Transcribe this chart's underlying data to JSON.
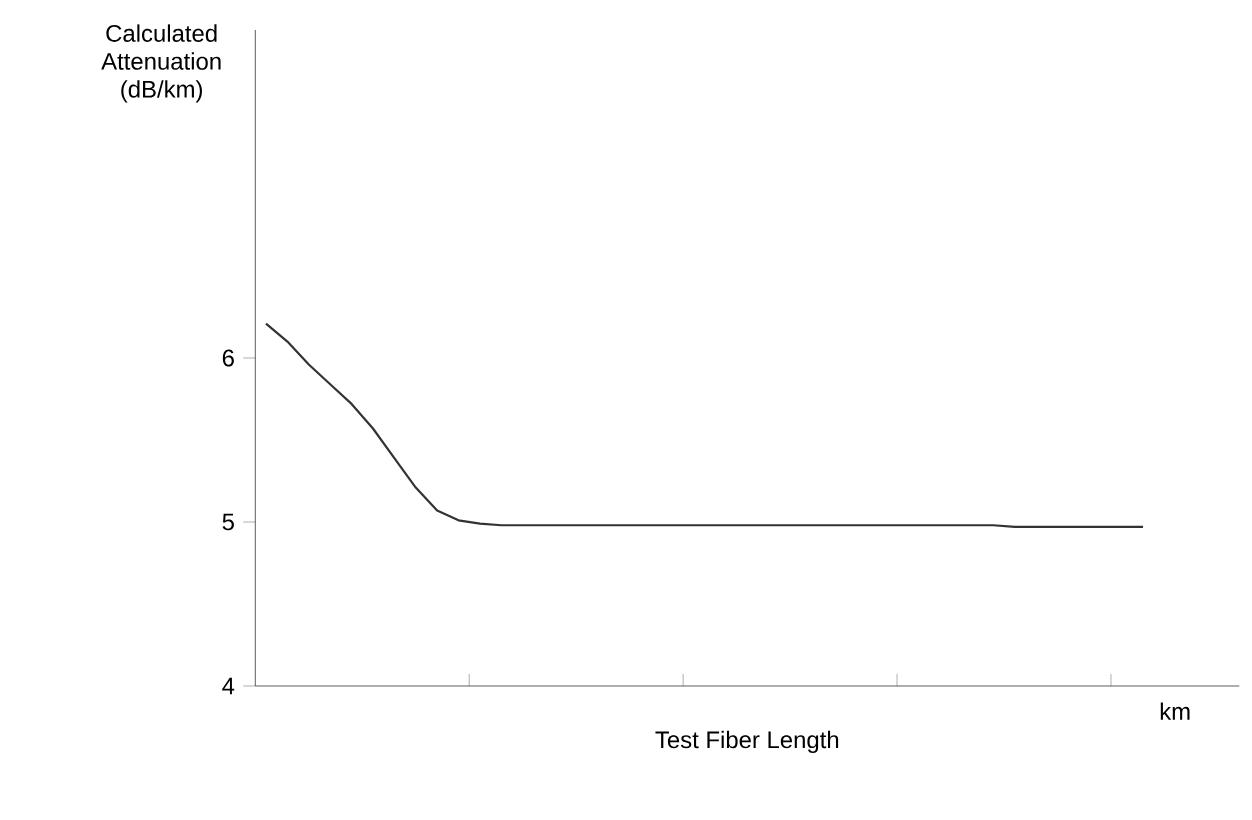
{
  "chart_data": {
    "type": "line",
    "ylabel": "Calculated Attenuation (dB/km)",
    "xlabel": "Test Fiber Length",
    "annotations": [
      "km"
    ],
    "categories": [
      null,
      null,
      null,
      null,
      null,
      null,
      null,
      null,
      null,
      null,
      null,
      null,
      null,
      null,
      null,
      null,
      null,
      null,
      null,
      null,
      null,
      null,
      null,
      null,
      null,
      null,
      null,
      null,
      null,
      null,
      null,
      null,
      null,
      null,
      null,
      null,
      null,
      null,
      null,
      null,
      null,
      null,
      null,
      null,
      null,
      null
    ],
    "values": [
      6.21,
      6.1,
      5.96,
      5.84,
      5.72,
      5.57,
      5.39,
      5.21,
      5.07,
      5.01,
      4.99,
      4.98,
      4.98,
      4.98,
      4.98,
      4.98,
      4.98,
      4.98,
      4.98,
      4.98,
      4.98,
      4.98,
      4.98,
      4.98,
      4.98,
      4.98,
      4.98,
      4.98,
      4.98,
      4.98,
      4.98,
      4.98,
      4.98,
      4.98,
      4.98,
      4.97,
      4.97,
      4.97,
      4.97,
      4.97,
      4.97,
      4.97,
      null,
      null,
      null,
      null
    ],
    "color": "#333333",
    "ylim": [
      4,
      8
    ],
    "yticks": [
      4,
      5,
      6
    ]
  }
}
